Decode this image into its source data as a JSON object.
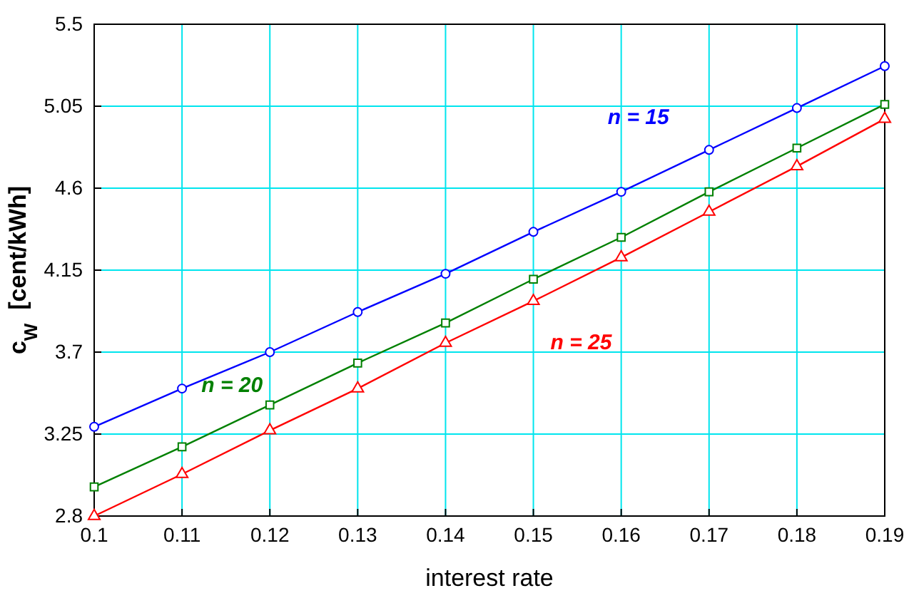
{
  "chart_data": {
    "type": "line",
    "xlabel": "interest rate",
    "ylabel": "c$_{W}$  [cent/kWh]",
    "x": [
      0.1,
      0.11,
      0.12,
      0.13,
      0.14,
      0.15,
      0.16,
      0.17,
      0.18,
      0.19
    ],
    "xlim": [
      0.1,
      0.19
    ],
    "xticks": [
      0.1,
      0.11,
      0.12,
      0.13,
      0.14,
      0.15,
      0.16,
      0.17,
      0.18,
      0.19
    ],
    "ylim": [
      2.8,
      5.5
    ],
    "yticks": [
      2.8,
      3.25,
      3.7,
      4.15,
      4.6,
      5.05,
      5.5
    ],
    "grid": true,
    "series": [
      {
        "name": "n = 15",
        "color": "#0000ff",
        "marker": "circle",
        "values": [
          3.29,
          3.5,
          3.7,
          3.92,
          4.13,
          4.36,
          4.58,
          4.81,
          5.04,
          5.27
        ]
      },
      {
        "name": "n = 20",
        "color": "#008000",
        "marker": "square",
        "values": [
          2.96,
          3.18,
          3.41,
          3.64,
          3.86,
          4.1,
          4.33,
          4.58,
          4.82,
          5.06
        ]
      },
      {
        "name": "n = 25",
        "color": "#ff0000",
        "marker": "triangle",
        "values": [
          2.8,
          3.03,
          3.27,
          3.5,
          3.75,
          3.98,
          4.22,
          4.47,
          4.72,
          4.98
        ]
      }
    ]
  }
}
